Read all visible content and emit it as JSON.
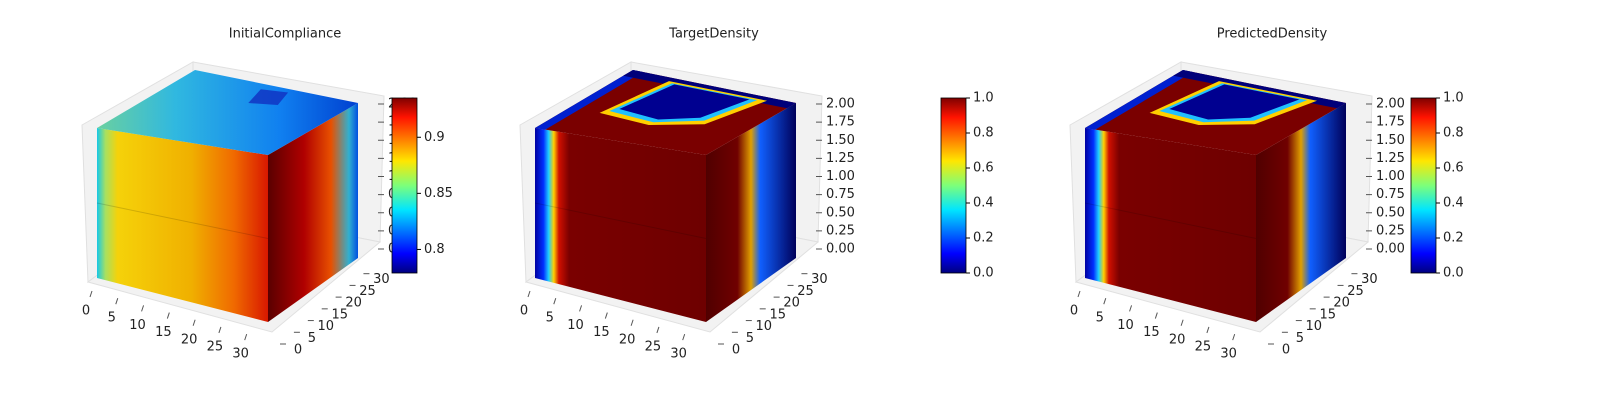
{
  "chart_data": [
    {
      "type": "voxel",
      "title": "InitialCompliance",
      "colormap": "jet",
      "xlim": [
        0,
        32
      ],
      "xticks": [
        0,
        5,
        10,
        15,
        20,
        25,
        30
      ],
      "ylim": [
        0,
        32
      ],
      "yticks": [
        0,
        5,
        10,
        15,
        20,
        25,
        30
      ],
      "zlim": [
        0,
        2
      ],
      "zticks": [
        {
          "value": 0,
          "label": "0.00"
        },
        {
          "value": 0.25,
          "label": "0.25"
        },
        {
          "value": 0.5,
          "label": "0.50"
        },
        {
          "value": 0.75,
          "label": "0.75"
        },
        {
          "value": 1,
          "label": "1.00"
        },
        {
          "value": 1.25,
          "label": "1.25"
        },
        {
          "value": 1.5,
          "label": "1.50"
        },
        {
          "value": 1.75,
          "label": "1.75"
        },
        {
          "value": 2,
          "label": "2.00"
        }
      ],
      "clim": [
        0.779,
        0.935
      ],
      "cticks": [
        0.8,
        0.85,
        0.9
      ]
    },
    {
      "type": "voxel",
      "title": "TargetDensity",
      "colormap": "jet",
      "xlim": [
        0,
        32
      ],
      "xticks": [
        0,
        5,
        10,
        15,
        20,
        25,
        30
      ],
      "ylim": [
        0,
        32
      ],
      "yticks": [
        0,
        5,
        10,
        15,
        20,
        25,
        30
      ],
      "zlim": [
        0,
        2
      ],
      "zticks": [
        {
          "value": 0,
          "label": "0.00"
        },
        {
          "value": 0.25,
          "label": "0.25"
        },
        {
          "value": 0.5,
          "label": "0.50"
        },
        {
          "value": 0.75,
          "label": "0.75"
        },
        {
          "value": 1,
          "label": "1.00"
        },
        {
          "value": 1.25,
          "label": "1.25"
        },
        {
          "value": 1.5,
          "label": "1.50"
        },
        {
          "value": 1.75,
          "label": "1.75"
        },
        {
          "value": 2,
          "label": "2.00"
        }
      ],
      "clim": [
        0,
        1
      ],
      "cticks": [
        {
          "value": 0,
          "label": "0.0"
        },
        {
          "value": 0.2,
          "label": "0.2"
        },
        {
          "value": 0.4,
          "label": "0.4"
        },
        {
          "value": 0.6,
          "label": "0.6"
        },
        {
          "value": 0.8,
          "label": "0.8"
        },
        {
          "value": 1,
          "label": "1.0"
        }
      ]
    },
    {
      "type": "voxel",
      "title": "PredictedDensity",
      "colormap": "jet",
      "xlim": [
        0,
        32
      ],
      "xticks": [
        0,
        5,
        10,
        15,
        20,
        25,
        30
      ],
      "ylim": [
        0,
        32
      ],
      "yticks": [
        0,
        5,
        10,
        15,
        20,
        25,
        30
      ],
      "zlim": [
        0,
        2
      ],
      "zticks": [
        {
          "value": 0,
          "label": "0.00"
        },
        {
          "value": 0.25,
          "label": "0.25"
        },
        {
          "value": 0.5,
          "label": "0.50"
        },
        {
          "value": 0.75,
          "label": "0.75"
        },
        {
          "value": 1,
          "label": "1.00"
        },
        {
          "value": 1.25,
          "label": "1.25"
        },
        {
          "value": 1.5,
          "label": "1.50"
        },
        {
          "value": 1.75,
          "label": "1.75"
        },
        {
          "value": 2,
          "label": "2.00"
        }
      ],
      "clim": [
        0,
        1
      ],
      "cticks": [
        {
          "value": 0,
          "label": "0.0"
        },
        {
          "value": 0.2,
          "label": "0.2"
        },
        {
          "value": 0.4,
          "label": "0.4"
        },
        {
          "value": 0.6,
          "label": "0.6"
        },
        {
          "value": 0.8,
          "label": "0.8"
        },
        {
          "value": 1,
          "label": "1.0"
        }
      ]
    }
  ]
}
